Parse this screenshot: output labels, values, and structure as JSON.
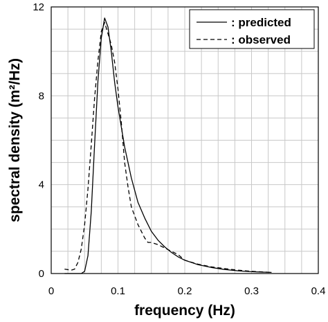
{
  "chart_data": {
    "type": "line",
    "title": "",
    "xlabel": "frequency (Hz)",
    "ylabel": "spectral density (m²/Hz)",
    "xlim": [
      0,
      0.4
    ],
    "ylim": [
      0,
      12
    ],
    "x_ticks": [
      0,
      0.1,
      0.2,
      0.3,
      0.4
    ],
    "x_tick_labels": [
      "0",
      "0.1",
      "0.2",
      "0.3",
      "0.4"
    ],
    "y_ticks": [
      0,
      4,
      8,
      12
    ],
    "y_tick_labels": [
      "0",
      "4",
      "8",
      "12"
    ],
    "grid": true,
    "legend_position": "top-right",
    "series": [
      {
        "name": ": predicted",
        "style": "solid",
        "color": "#000000",
        "x": [
          0.02,
          0.045,
          0.05,
          0.055,
          0.06,
          0.065,
          0.07,
          0.075,
          0.08,
          0.085,
          0.09,
          0.095,
          0.1,
          0.105,
          0.11,
          0.12,
          0.13,
          0.14,
          0.15,
          0.16,
          0.17,
          0.18,
          0.19,
          0.2,
          0.22,
          0.24,
          0.26,
          0.28,
          0.3,
          0.33
        ],
        "y": [
          0.0,
          0.0,
          0.1,
          0.8,
          2.8,
          5.8,
          8.7,
          10.6,
          11.5,
          11.1,
          10.0,
          8.6,
          7.5,
          6.6,
          5.7,
          4.3,
          3.2,
          2.5,
          1.9,
          1.5,
          1.2,
          0.95,
          0.75,
          0.6,
          0.4,
          0.27,
          0.18,
          0.12,
          0.08,
          0.05
        ]
      },
      {
        "name": ": observed",
        "style": "dashed",
        "color": "#000000",
        "x": [
          0.02,
          0.03,
          0.035,
          0.04,
          0.045,
          0.05,
          0.055,
          0.06,
          0.065,
          0.07,
          0.075,
          0.08,
          0.085,
          0.09,
          0.095,
          0.1,
          0.105,
          0.11,
          0.115,
          0.12,
          0.13,
          0.14,
          0.145,
          0.15,
          0.16,
          0.17,
          0.18,
          0.19,
          0.2,
          0.22,
          0.24,
          0.26,
          0.28,
          0.3,
          0.33
        ],
        "y": [
          0.2,
          0.15,
          0.2,
          0.5,
          1.1,
          2.2,
          3.8,
          5.8,
          7.9,
          9.6,
          10.9,
          11.3,
          10.8,
          10.3,
          9.5,
          8.3,
          6.8,
          5.0,
          3.9,
          3.0,
          2.2,
          1.6,
          1.4,
          1.4,
          1.3,
          1.15,
          1.0,
          0.85,
          0.6,
          0.42,
          0.3,
          0.22,
          0.15,
          0.1,
          0.05
        ]
      }
    ]
  }
}
